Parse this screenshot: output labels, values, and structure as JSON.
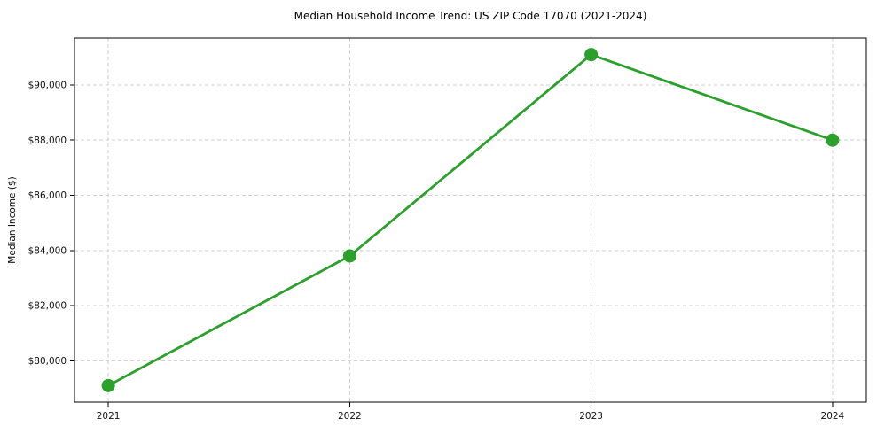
{
  "chart_data": {
    "type": "line",
    "title": "Median Household Income Trend: US ZIP Code 17070 (2021-2024)",
    "xlabel": "",
    "ylabel": "Median Income ($)",
    "x": [
      2021,
      2022,
      2023,
      2024
    ],
    "series": [
      {
        "name": "Median Household Income",
        "values": [
          79100,
          83800,
          91100,
          88000
        ]
      }
    ],
    "xlim": [
      2020.86,
      2024.14
    ],
    "ylim": [
      78500,
      91700
    ],
    "xticks": [
      2021,
      2022,
      2023,
      2024
    ],
    "xtick_labels": [
      "2021",
      "2022",
      "2023",
      "2024"
    ],
    "yticks": [
      80000,
      82000,
      84000,
      86000,
      88000,
      90000
    ],
    "ytick_labels": [
      "$80,000",
      "$82,000",
      "$84,000",
      "$86,000",
      "$88,000",
      "$90,000"
    ],
    "grid": true,
    "grid_style": "dashed",
    "legend_visible": false,
    "colors": {
      "line": "#2ca02c",
      "marker": "#2ca02c",
      "grid": "#d2d2d2",
      "spine": "#000000",
      "text": "#111111",
      "background": "#ffffff"
    }
  }
}
